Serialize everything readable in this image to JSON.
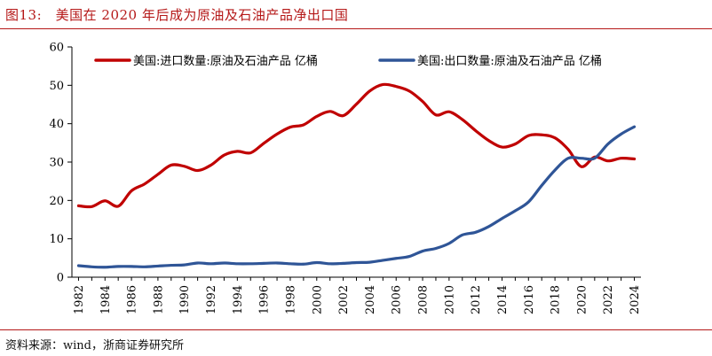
{
  "title": "图13:　美国在 2020 年后成为原油及石油产品净出口国",
  "source": "资料来源：wind，浙商证券研究所",
  "colors": {
    "accent": "#b51818",
    "import": "#c00000",
    "export": "#2f5597"
  },
  "chart_data": {
    "type": "line",
    "x": [
      1982,
      1983,
      1984,
      1985,
      1986,
      1987,
      1988,
      1989,
      1990,
      1991,
      1992,
      1993,
      1994,
      1995,
      1996,
      1997,
      1998,
      1999,
      2000,
      2001,
      2002,
      2003,
      2004,
      2005,
      2006,
      2007,
      2008,
      2009,
      2010,
      2011,
      2012,
      2013,
      2014,
      2015,
      2016,
      2017,
      2018,
      2019,
      2020,
      2021,
      2022,
      2023,
      2024
    ],
    "xticks": [
      "1982",
      "1984",
      "1986",
      "1988",
      "1990",
      "1992",
      "1994",
      "1996",
      "1998",
      "2000",
      "2002",
      "2004",
      "2006",
      "2008",
      "2010",
      "2012",
      "2014",
      "2016",
      "2018",
      "2020",
      "2022",
      "2024"
    ],
    "yticks": [
      "0",
      "10",
      "20",
      "30",
      "40",
      "50",
      "60"
    ],
    "ylim": [
      0,
      60
    ],
    "grid": false,
    "legend_position": "top",
    "series": [
      {
        "name": "美国:进口数量:原油及石油产品 亿桶",
        "color": "#c00000",
        "values": [
          18.6,
          18.4,
          19.9,
          18.5,
          22.5,
          24.3,
          26.8,
          29.2,
          28.9,
          27.8,
          29.2,
          31.8,
          32.8,
          32.4,
          34.9,
          37.3,
          39.1,
          39.7,
          41.9,
          43.2,
          42.1,
          45.1,
          48.5,
          50.2,
          49.7,
          48.5,
          45.8,
          42.3,
          43.1,
          41.1,
          38.2,
          35.6,
          33.9,
          34.7,
          36.9,
          37.1,
          36.3,
          33.3,
          28.8,
          31.3,
          30.3,
          31.0,
          30.8
        ]
      },
      {
        "name": "美国:出口数量:原油及石油产品 亿桶",
        "color": "#2f5597",
        "values": [
          3.0,
          2.7,
          2.6,
          2.8,
          2.8,
          2.7,
          2.9,
          3.1,
          3.2,
          3.7,
          3.5,
          3.7,
          3.5,
          3.5,
          3.6,
          3.7,
          3.5,
          3.4,
          3.8,
          3.5,
          3.6,
          3.8,
          3.9,
          4.4,
          4.9,
          5.4,
          6.8,
          7.5,
          8.8,
          11.0,
          11.7,
          13.2,
          15.3,
          17.3,
          19.6,
          23.9,
          27.9,
          31.0,
          31.0,
          31.0,
          34.7,
          37.3,
          39.2
        ]
      }
    ]
  }
}
